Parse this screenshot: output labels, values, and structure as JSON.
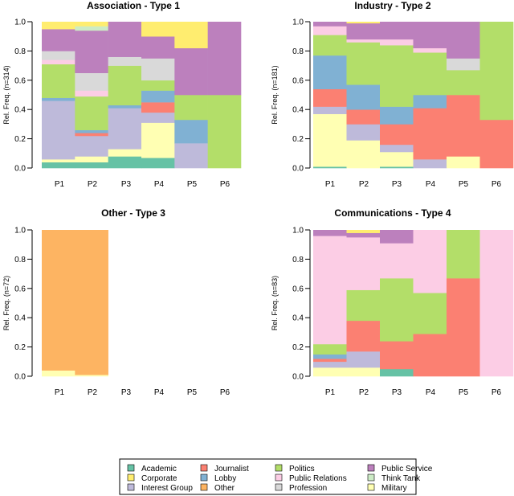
{
  "colors": {
    "Academic": "#66C2A5",
    "Corporate": "#FFED6F",
    "Interest Group": "#BEBADA",
    "Journalist": "#FB8072",
    "Lobby": "#80B1D3",
    "Other": "#FDB462",
    "Politics": "#B3DE69",
    "Public Relations": "#FCCDE5",
    "Profession": "#D9D9D9",
    "Public Service": "#BC80BD",
    "Think Tank": "#CCEBC5",
    "Military": "#FFFFB3"
  },
  "legend": {
    "items": [
      "Academic",
      "Journalist",
      "Politics",
      "Public Service",
      "Corporate",
      "Lobby",
      "Public Relations",
      "Think Tank",
      "Interest Group",
      "Other",
      "Profession",
      "Military"
    ]
  },
  "chart_data": [
    {
      "type": "bar",
      "stacked": true,
      "title": "Association  - Type 1",
      "ylabel": "Rel. Freq. (n=314)",
      "categories": [
        "P1",
        "P2",
        "P3",
        "P4",
        "P5",
        "P6"
      ],
      "yticks": [
        "0.0",
        "0.2",
        "0.4",
        "0.6",
        "0.8",
        "1.0"
      ],
      "ylim": [
        0,
        1
      ],
      "segments": [
        [
          [
            "Academic",
            0.04
          ],
          [
            "Military",
            0.02
          ],
          [
            "Interest Group",
            0.4
          ],
          [
            "Lobby",
            0.02
          ],
          [
            "Politics",
            0.23
          ],
          [
            "Public Relations",
            0.03
          ],
          [
            "Profession",
            0.06
          ],
          [
            "Public Service",
            0.15
          ],
          [
            "Corporate",
            0.05
          ]
        ],
        [
          [
            "Academic",
            0.04
          ],
          [
            "Military",
            0.04
          ],
          [
            "Interest Group",
            0.14
          ],
          [
            "Journalist",
            0.02
          ],
          [
            "Lobby",
            0.02
          ],
          [
            "Politics",
            0.23
          ],
          [
            "Public Relations",
            0.04
          ],
          [
            "Profession",
            0.12
          ],
          [
            "Public Service",
            0.29
          ],
          [
            "Think Tank",
            0.03
          ],
          [
            "Corporate",
            0.03
          ]
        ],
        [
          [
            "Academic",
            0.08
          ],
          [
            "Military",
            0.05
          ],
          [
            "Interest Group",
            0.28
          ],
          [
            "Lobby",
            0.02
          ],
          [
            "Politics",
            0.27
          ],
          [
            "Profession",
            0.06
          ],
          [
            "Public Service",
            0.24
          ]
        ],
        [
          [
            "Academic",
            0.07
          ],
          [
            "Military",
            0.24
          ],
          [
            "Interest Group",
            0.07
          ],
          [
            "Journalist",
            0.07
          ],
          [
            "Lobby",
            0.08
          ],
          [
            "Politics",
            0.07
          ],
          [
            "Profession",
            0.15
          ],
          [
            "Public Service",
            0.15
          ],
          [
            "Corporate",
            0.1
          ]
        ],
        [
          [
            "Interest Group",
            0.17
          ],
          [
            "Lobby",
            0.16
          ],
          [
            "Politics",
            0.17
          ],
          [
            "Public Service",
            0.32
          ],
          [
            "Corporate",
            0.18
          ]
        ],
        [
          [
            "Politics",
            0.5
          ],
          [
            "Public Service",
            0.5
          ]
        ]
      ]
    },
    {
      "type": "bar",
      "stacked": true,
      "title": "Industry  - Type 2",
      "ylabel": "Rel. Freq. (n=181)",
      "categories": [
        "P1",
        "P2",
        "P3",
        "P4",
        "P5",
        "P6"
      ],
      "yticks": [
        "0.0",
        "0.2",
        "0.4",
        "0.6",
        "0.8",
        "1.0"
      ],
      "ylim": [
        0,
        1
      ],
      "segments": [
        [
          [
            "Academic",
            0.01
          ],
          [
            "Military",
            0.36
          ],
          [
            "Interest Group",
            0.05
          ],
          [
            "Journalist",
            0.12
          ],
          [
            "Lobby",
            0.23
          ],
          [
            "Politics",
            0.14
          ],
          [
            "Public Relations",
            0.06
          ],
          [
            "Public Service",
            0.03
          ]
        ],
        [
          [
            "Military",
            0.19
          ],
          [
            "Interest Group",
            0.11
          ],
          [
            "Journalist",
            0.1
          ],
          [
            "Lobby",
            0.17
          ],
          [
            "Politics",
            0.29
          ],
          [
            "Public Relations",
            0.02
          ],
          [
            "Public Service",
            0.11
          ],
          [
            "Corporate",
            0.01
          ]
        ],
        [
          [
            "Academic",
            0.01
          ],
          [
            "Military",
            0.1
          ],
          [
            "Interest Group",
            0.05
          ],
          [
            "Journalist",
            0.14
          ],
          [
            "Lobby",
            0.12
          ],
          [
            "Politics",
            0.42
          ],
          [
            "Public Relations",
            0.04
          ],
          [
            "Public Service",
            0.12
          ]
        ],
        [
          [
            "Interest Group",
            0.06
          ],
          [
            "Journalist",
            0.35
          ],
          [
            "Lobby",
            0.09
          ],
          [
            "Politics",
            0.29
          ],
          [
            "Public Relations",
            0.03
          ],
          [
            "Public Service",
            0.18
          ]
        ],
        [
          [
            "Military",
            0.08
          ],
          [
            "Journalist",
            0.42
          ],
          [
            "Politics",
            0.17
          ],
          [
            "Profession",
            0.08
          ],
          [
            "Public Service",
            0.25
          ]
        ],
        [
          [
            "Journalist",
            0.33
          ],
          [
            "Politics",
            0.67
          ]
        ]
      ]
    },
    {
      "type": "bar",
      "stacked": true,
      "title": "Other  - Type 3",
      "ylabel": "Rel. Freq. (n=72)",
      "categories": [
        "P1",
        "P2",
        "P3",
        "P4",
        "P5",
        "P6"
      ],
      "yticks": [
        "0.0",
        "0.2",
        "0.4",
        "0.6",
        "0.8",
        "1.0"
      ],
      "ylim": [
        0,
        1
      ],
      "segments": [
        [
          [
            "Military",
            0.04
          ],
          [
            "Other",
            0.96
          ]
        ],
        [
          [
            "Military",
            0.01
          ],
          [
            "Other",
            0.99
          ]
        ],
        [],
        [],
        [],
        []
      ]
    },
    {
      "type": "bar",
      "stacked": true,
      "title": "Communications  - Type 4",
      "ylabel": "Rel. Freq. (n=83)",
      "categories": [
        "P1",
        "P2",
        "P3",
        "P4",
        "P5",
        "P6"
      ],
      "yticks": [
        "0.0",
        "0.2",
        "0.4",
        "0.6",
        "0.8",
        "1.0"
      ],
      "ylim": [
        0,
        1
      ],
      "segments": [
        [
          [
            "Military",
            0.06
          ],
          [
            "Interest Group",
            0.04
          ],
          [
            "Journalist",
            0.02
          ],
          [
            "Lobby",
            0.03
          ],
          [
            "Politics",
            0.07
          ],
          [
            "Public Relations",
            0.74
          ],
          [
            "Public Service",
            0.04
          ]
        ],
        [
          [
            "Military",
            0.06
          ],
          [
            "Interest Group",
            0.11
          ],
          [
            "Journalist",
            0.21
          ],
          [
            "Politics",
            0.21
          ],
          [
            "Public Relations",
            0.36
          ],
          [
            "Public Service",
            0.03
          ],
          [
            "Corporate",
            0.02
          ]
        ],
        [
          [
            "Academic",
            0.05
          ],
          [
            "Journalist",
            0.19
          ],
          [
            "Politics",
            0.43
          ],
          [
            "Public Relations",
            0.24
          ],
          [
            "Public Service",
            0.09
          ]
        ],
        [
          [
            "Journalist",
            0.29
          ],
          [
            "Politics",
            0.28
          ],
          [
            "Public Relations",
            0.43
          ]
        ],
        [
          [
            "Journalist",
            0.67
          ],
          [
            "Politics",
            0.33
          ]
        ],
        [
          [
            "Public Relations",
            1.0
          ]
        ]
      ]
    }
  ]
}
